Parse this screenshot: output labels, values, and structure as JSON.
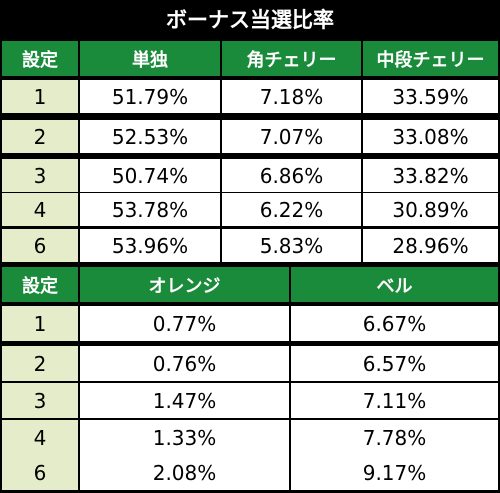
{
  "title": "ボーナス当選比率",
  "table1": {
    "headers": [
      "設定",
      "単独",
      "角チェリー",
      "中段チェリー"
    ],
    "rows": [
      [
        "1",
        "51.79%",
        "7.18%",
        "33.59%"
      ],
      [
        "2",
        "52.53%",
        "7.07%",
        "33.08%"
      ],
      [
        "3",
        "50.74%",
        "6.86%",
        "33.82%"
      ],
      [
        "4",
        "53.78%",
        "6.22%",
        "30.89%"
      ],
      [
        "6",
        "53.96%",
        "5.83%",
        "28.96%"
      ]
    ]
  },
  "table2": {
    "headers": [
      "設定",
      "オレンジ",
      "ベル"
    ],
    "rows": [
      [
        "1",
        "0.77%",
        "6.67%"
      ],
      [
        "2",
        "0.76%",
        "6.57%"
      ],
      [
        "3",
        "1.47%",
        "7.11%"
      ],
      [
        "4",
        "1.33%",
        "7.78%"
      ],
      [
        "6",
        "2.08%",
        "9.17%"
      ]
    ]
  },
  "colors": {
    "header_bg": "#1a8a3b",
    "setting_bg": "#e5ecc9",
    "cell_bg": "#ffffff",
    "border": "#000000"
  }
}
